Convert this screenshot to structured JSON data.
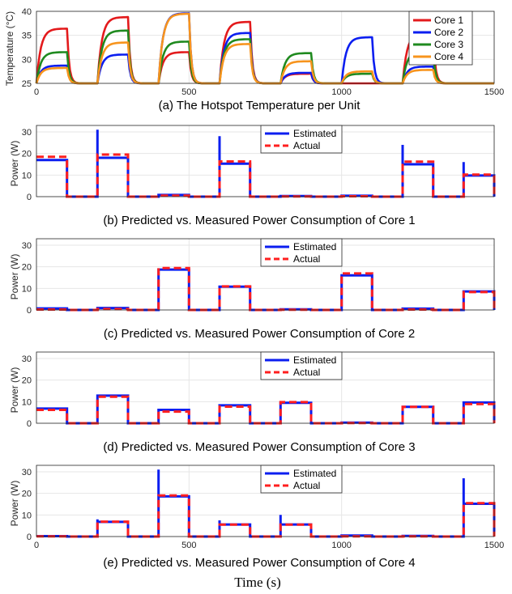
{
  "figure": {
    "xlabel": "Time (s)"
  },
  "chart_data": [
    {
      "type": "line",
      "title": "(a) The Hotspot Temperature per Unit",
      "ylabel": "Temperature (°C)",
      "xlabel": "",
      "xlim": [
        0,
        1500
      ],
      "ylim": [
        25,
        40
      ],
      "xticks": [
        "0",
        "500",
        "1000",
        "1500"
      ],
      "yticks": [
        "25",
        "30",
        "35",
        "40"
      ],
      "grid": true,
      "legend_position": "top-right",
      "colors": [
        "#e31a1c",
        "#0b1ef0",
        "#1f8a1f",
        "#f7941d"
      ],
      "series": [
        {
          "name": "Core 1",
          "values": [
            36.4,
            38.8,
            31.5,
            37.8,
            27.0,
            25.0,
            35.5,
            25.0
          ]
        },
        {
          "name": "Core 2",
          "values": [
            28.7,
            31.0,
            39.6,
            35.5,
            27.2,
            34.6,
            28.5,
            25.0
          ]
        },
        {
          "name": "Core 3",
          "values": [
            31.5,
            36.0,
            33.7,
            34.2,
            31.3,
            27.0,
            31.8,
            25.0
          ]
        },
        {
          "name": "Core 4",
          "values": [
            28.2,
            33.5,
            39.5,
            33.2,
            29.6,
            27.5,
            27.8,
            25.0
          ]
        }
      ],
      "segments_x": [
        [
          0,
          100
        ],
        [
          200,
          300
        ],
        [
          400,
          500
        ],
        [
          600,
          700
        ],
        [
          800,
          900
        ],
        [
          1000,
          1100
        ],
        [
          1200,
          1300
        ],
        [
          1400,
          1500
        ]
      ]
    },
    {
      "type": "line",
      "title": "(b) Predicted vs. Measured Power Consumption of Core 1",
      "ylabel": "Power (W)",
      "xlim": [
        0,
        1500
      ],
      "ylim": [
        0,
        33
      ],
      "yticks": [
        "0",
        "10",
        "20",
        "30"
      ],
      "grid": true,
      "legend_position": "top-center",
      "series": [
        {
          "name": "Estimated",
          "values": [
            17.0,
            0,
            18.0,
            0,
            0.8,
            0,
            15.3,
            0,
            0.3,
            0,
            0.4,
            0,
            15.0,
            0,
            9.8
          ]
        },
        {
          "name": "Actual",
          "values": [
            18.5,
            0,
            19.5,
            0,
            0.5,
            0,
            16.3,
            0,
            0.1,
            0,
            0.2,
            0,
            16.2,
            0,
            10.2
          ]
        }
      ],
      "spikes": [
        [
          200,
          31
        ],
        [
          600,
          28
        ],
        [
          1200,
          24
        ],
        [
          1400,
          16
        ]
      ]
    },
    {
      "type": "line",
      "title": "(c) Predicted vs. Measured Power Consumption of Core 2",
      "ylabel": "Power (W)",
      "xlim": [
        0,
        1500
      ],
      "ylim": [
        0,
        33
      ],
      "yticks": [
        "0",
        "10",
        "20",
        "30"
      ],
      "grid": true,
      "legend_position": "top-center",
      "series": [
        {
          "name": "Estimated",
          "values": [
            0.7,
            0,
            0.9,
            0,
            18.7,
            0,
            10.8,
            0,
            0.3,
            0,
            16.0,
            0,
            0.6,
            0,
            8.6
          ]
        },
        {
          "name": "Actual",
          "values": [
            0.2,
            0,
            0.4,
            0,
            19.4,
            0,
            10.9,
            0,
            0.1,
            0,
            16.9,
            0,
            0.2,
            0,
            8.3
          ]
        }
      ],
      "spikes": []
    },
    {
      "type": "line",
      "title": "(d) Predicted vs. Measured Power Consumption of Core 3",
      "ylabel": "Power (W)",
      "xlim": [
        0,
        1500
      ],
      "ylim": [
        0,
        33
      ],
      "yticks": [
        "0",
        "10",
        "20",
        "30"
      ],
      "grid": true,
      "legend_position": "top-center",
      "series": [
        {
          "name": "Estimated",
          "values": [
            6.8,
            0,
            12.8,
            0,
            6.2,
            0,
            8.3,
            0,
            9.5,
            0,
            0.3,
            0,
            7.6,
            0,
            9.6
          ]
        },
        {
          "name": "Actual",
          "values": [
            6.2,
            0,
            12.3,
            0,
            5.4,
            0,
            7.7,
            0,
            9.8,
            0,
            0.1,
            0,
            7.6,
            0,
            8.9
          ]
        }
      ],
      "spikes": []
    },
    {
      "type": "line",
      "title": "(e) Predicted vs. Measured Power Consumption of Core 4",
      "ylabel": "Power (W)",
      "xlim": [
        0,
        1500
      ],
      "ylim": [
        0,
        33
      ],
      "xticks": [
        "0",
        "500",
        "1000",
        "1500"
      ],
      "yticks": [
        "0",
        "10",
        "20",
        "30"
      ],
      "grid": true,
      "legend_position": "top-center",
      "series": [
        {
          "name": "Estimated",
          "values": [
            0.2,
            0,
            6.8,
            0,
            18.6,
            0,
            5.6,
            0,
            5.6,
            0,
            0.5,
            0,
            0.3,
            0,
            15.2
          ]
        },
        {
          "name": "Actual",
          "values": [
            0.1,
            0,
            6.9,
            0,
            19.0,
            0,
            5.5,
            0,
            5.5,
            0,
            0.1,
            0,
            0.1,
            0,
            15.5
          ]
        }
      ],
      "spikes": [
        [
          200,
          8
        ],
        [
          400,
          31
        ],
        [
          600,
          7.5
        ],
        [
          800,
          10
        ],
        [
          1400,
          27
        ]
      ]
    }
  ]
}
